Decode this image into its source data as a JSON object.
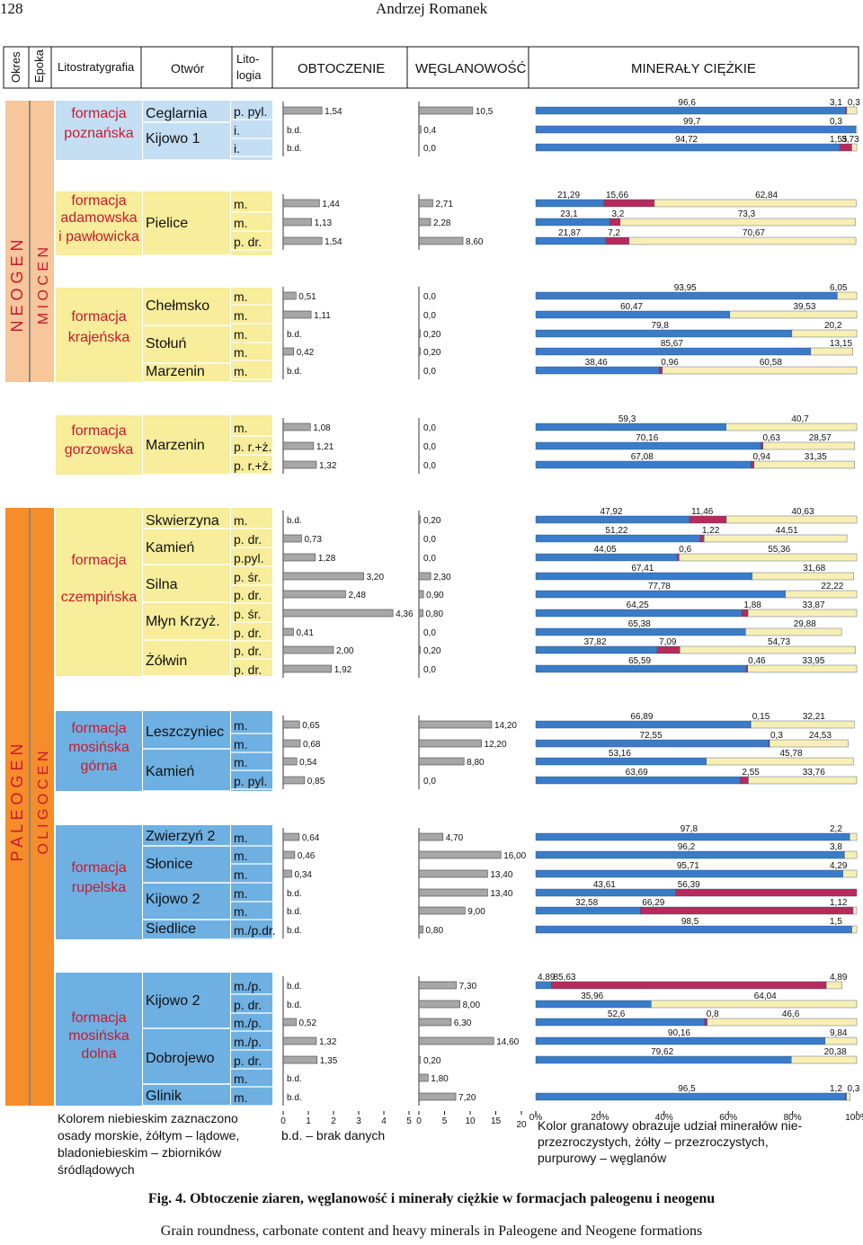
{
  "page_header": {
    "page_number": "128",
    "author": "Andrzej Romanek"
  },
  "column_headers": {
    "okres": "Okres",
    "epoka": "Epoka",
    "lito": "Litostratygrafia",
    "otwor": "Otwór",
    "litologia": "Litologia",
    "obtoczenie": "OBTOCZENIE",
    "weglanowosc": "WĘGLANOWOŚĆ",
    "mineraly": "MINERAŁY CIĘŻKIE"
  },
  "periods": [
    {
      "label": "N E O G E N",
      "epoch": "M I O C E N",
      "color": "#f7c69a"
    },
    {
      "label": "P A L E O G E N",
      "epoch": "O L I G O C E N",
      "color": "#f58d2a"
    }
  ],
  "formations": [
    {
      "name": [
        "formacja",
        "poznańska"
      ],
      "env": "lake"
    },
    {
      "name": [
        "formacja",
        "adamowska",
        "i pawłowicka"
      ],
      "env": "land"
    },
    {
      "name": [
        "formacja",
        "krajeńska"
      ],
      "env": "land"
    },
    {
      "name": [
        "formacja",
        "gorzowska"
      ],
      "env": "land"
    },
    {
      "name": [
        "formacja",
        "czempińska"
      ],
      "env": "land"
    },
    {
      "name": [
        "formacja",
        "mosińska",
        "górna"
      ],
      "env": "sea"
    },
    {
      "name": [
        "formacja",
        "rupelska"
      ],
      "env": "sea"
    },
    {
      "name": [
        "formacja",
        "mosińska",
        "dolna"
      ],
      "env": "sea"
    }
  ],
  "env_colors": {
    "sea": "#6eb0e2",
    "land": "#f7ed9a",
    "lake": "#c4def3"
  },
  "boreholes": [
    "Ceglarnia",
    "Kijowo 1",
    "Pielice",
    "Chełmsko",
    "Stołuń",
    "Marzenin",
    "Marzenin",
    "Skwierzyna",
    "Kamień",
    "Silna",
    "Młyn Krzyż.",
    "Żółwin",
    "Leszczyniec",
    "Kamień",
    "Zwierzyń 2",
    "Słonice",
    "Kijowo 2",
    "Siedlice",
    "Kijowo 2",
    "Dobrojewo",
    "Glinik"
  ],
  "samples": [
    {
      "lith": "p. pyl.",
      "round": 1.54,
      "round_label": "1,54",
      "carb": 10.5,
      "carb_label": "10,5",
      "blue": 96.6,
      "red": 0.3,
      "yellow": 3.1,
      "blue_label": "96,6",
      "red_label": "0,3",
      "yellow_label": "3,1"
    },
    {
      "lith": "i.",
      "round": null,
      "round_label": "b.d.",
      "carb": 0.4,
      "carb_label": "0,4",
      "blue": 99.7,
      "red": 0.0,
      "yellow": 0.3,
      "blue_label": "99,7",
      "red_label": "",
      "yellow_label": "0,3"
    },
    {
      "lith": "i.",
      "round": null,
      "round_label": "b.d.",
      "carb": 0.0,
      "carb_label": "0,0",
      "blue": 94.72,
      "red": 3.73,
      "yellow": 1.55,
      "blue_label": "94,72",
      "red_label": "3,73",
      "yellow_label": "1,55"
    },
    {
      "lith": "m.",
      "round": 1.44,
      "round_label": "1,44",
      "carb": 2.71,
      "carb_label": "2,71",
      "blue": 21.29,
      "red": 15.66,
      "yellow": 62.84,
      "blue_label": "21,29",
      "red_label": "15,66",
      "yellow_label": "62,84"
    },
    {
      "lith": "m.",
      "round": 1.13,
      "round_label": "1,13",
      "carb": 2.28,
      "carb_label": "2,28",
      "blue": 23.1,
      "red": 3.2,
      "yellow": 73.3,
      "blue_label": "23,1",
      "red_label": "3,2",
      "yellow_label": "73,3"
    },
    {
      "lith": "p. dr.",
      "round": 1.54,
      "round_label": "1,54",
      "carb": 8.6,
      "carb_label": "8,60",
      "blue": 21.87,
      "red": 7.2,
      "yellow": 70.67,
      "blue_label": "21,87",
      "red_label": "7,2",
      "yellow_label": "70,67"
    },
    {
      "lith": "m.",
      "round": 0.51,
      "round_label": "0,51",
      "carb": 0.0,
      "carb_label": "0,0",
      "blue": 93.95,
      "red": 0.0,
      "yellow": 6.05,
      "blue_label": "93,95",
      "red_label": "",
      "yellow_label": "6,05"
    },
    {
      "lith": "m.",
      "round": 1.11,
      "round_label": "1,11",
      "carb": 0.0,
      "carb_label": "0,0",
      "blue": 60.47,
      "red": 0.0,
      "yellow": 39.53,
      "blue_label": "60,47",
      "red_label": "",
      "yellow_label": "39,53"
    },
    {
      "lith": "m.",
      "round": null,
      "round_label": "b.d.",
      "carb": 0.2,
      "carb_label": "0,20",
      "blue": 79.8,
      "red": 0.0,
      "yellow": 20.2,
      "blue_label": "79,8",
      "red_label": "",
      "yellow_label": "20,2"
    },
    {
      "lith": "m.",
      "round": 0.42,
      "round_label": "0,42",
      "carb": 0.2,
      "carb_label": "0,20",
      "blue": 85.67,
      "red": 0.0,
      "yellow": 13.15,
      "blue_label": "85,67",
      "red_label": "",
      "yellow_label": "13,15"
    },
    {
      "lith": "m.",
      "round": null,
      "round_label": "b.d.",
      "carb": 0.0,
      "carb_label": "0,0",
      "blue": 38.46,
      "red": 0.96,
      "yellow": 60.58,
      "blue_label": "38,46",
      "red_label": "0,96",
      "yellow_label": "60,58"
    },
    {
      "lith": "m.",
      "round": 1.08,
      "round_label": "1,08",
      "carb": 0.0,
      "carb_label": "0,0",
      "blue": 59.3,
      "red": 0.0,
      "yellow": 40.7,
      "blue_label": "59,3",
      "red_label": "",
      "yellow_label": "40,7"
    },
    {
      "lith": "p. r.+ż.",
      "round": 1.21,
      "round_label": "1,21",
      "carb": 0.0,
      "carb_label": "0,0",
      "blue": 70.16,
      "red": 0.63,
      "yellow": 28.57,
      "blue_label": "70,16",
      "red_label": "0,63",
      "yellow_label": "28,57"
    },
    {
      "lith": "p. r.+ż.",
      "round": 1.32,
      "round_label": "1,32",
      "carb": 0.0,
      "carb_label": "0,0",
      "blue": 67.08,
      "red": 0.94,
      "yellow": 31.35,
      "blue_label": "67,08",
      "red_label": "0,94",
      "yellow_label": "31,35"
    },
    {
      "lith": "m.",
      "round": null,
      "round_label": "b.d.",
      "carb": 0.2,
      "carb_label": "0,20",
      "blue": 47.92,
      "red": 11.46,
      "yellow": 40.63,
      "blue_label": "47,92",
      "red_label": "11,46",
      "yellow_label": "40,63"
    },
    {
      "lith": "p. dr.",
      "round": 0.73,
      "round_label": "0,73",
      "carb": 0.0,
      "carb_label": "0,0",
      "blue": 51.22,
      "red": 1.22,
      "yellow": 44.51,
      "blue_label": "51,22",
      "red_label": "1,22",
      "yellow_label": "44,51"
    },
    {
      "lith": "p.pyl.",
      "round": 1.28,
      "round_label": "1,28",
      "carb": 0.0,
      "carb_label": "0,0",
      "blue": 44.05,
      "red": 0.6,
      "yellow": 55.36,
      "blue_label": "44,05",
      "red_label": "0,6",
      "yellow_label": "55,36"
    },
    {
      "lith": "p. śr.",
      "round": 3.2,
      "round_label": "3,20",
      "carb": 2.3,
      "carb_label": "2,30",
      "blue": 67.41,
      "red": 0.0,
      "yellow": 31.68,
      "blue_label": "67,41",
      "red_label": "",
      "yellow_label": "31,68"
    },
    {
      "lith": "p. dr.",
      "round": 2.48,
      "round_label": "2,48",
      "carb": 0.9,
      "carb_label": "0,90",
      "blue": 77.78,
      "red": 0.0,
      "yellow": 22.22,
      "blue_label": "77,78",
      "red_label": "",
      "yellow_label": "22,22"
    },
    {
      "lith": "p. śr.",
      "round": 4.36,
      "round_label": "4,36",
      "carb": 0.8,
      "carb_label": "0,80",
      "blue": 64.25,
      "red": 1.88,
      "yellow": 33.87,
      "blue_label": "64,25",
      "red_label": "1,88",
      "yellow_label": "33,87"
    },
    {
      "lith": "p. dr.",
      "round": 0.41,
      "round_label": "0,41",
      "carb": 0.0,
      "carb_label": "0,0",
      "blue": 65.38,
      "red": 0.0,
      "yellow": 29.88,
      "blue_label": "65,38",
      "red_label": "",
      "yellow_label": "29,88"
    },
    {
      "lith": "p. dr.",
      "round": 2.0,
      "round_label": "2,00",
      "carb": 0.2,
      "carb_label": "0,20",
      "blue": 37.82,
      "red": 7.09,
      "yellow": 54.73,
      "blue_label": "37,82",
      "red_label": "7,09",
      "yellow_label": "54,73"
    },
    {
      "lith": "p. dr.",
      "round": 1.92,
      "round_label": "1,92",
      "carb": 0.0,
      "carb_label": "0,0",
      "blue": 65.59,
      "red": 0.46,
      "yellow": 33.95,
      "blue_label": "65,59",
      "red_label": "0,46",
      "yellow_label": "33,95"
    },
    {
      "lith": "m.",
      "round": 0.65,
      "round_label": "0,65",
      "carb": 14.2,
      "carb_label": "14,20",
      "blue": 66.89,
      "red": 0.15,
      "yellow": 32.21,
      "blue_label": "66,89",
      "red_label": "0,15",
      "yellow_label": "32,21"
    },
    {
      "lith": "m.",
      "round": 0.68,
      "round_label": "0,68",
      "carb": 12.2,
      "carb_label": "12,20",
      "blue": 72.55,
      "red": 0.3,
      "yellow": 24.53,
      "blue_label": "72,55",
      "red_label": "0,3",
      "yellow_label": "24,53"
    },
    {
      "lith": "m.",
      "round": 0.54,
      "round_label": "0,54",
      "carb": 8.8,
      "carb_label": "8,80",
      "blue": 53.16,
      "red": 0.0,
      "yellow": 45.78,
      "blue_label": "53,16",
      "red_label": "",
      "yellow_label": "45,78"
    },
    {
      "lith": "p. pyl.",
      "round": 0.85,
      "round_label": "0,85",
      "carb": 0.0,
      "carb_label": "0,0",
      "blue": 63.69,
      "red": 2.55,
      "yellow": 33.76,
      "blue_label": "63,69",
      "red_label": "2,55",
      "yellow_label": "33,76"
    },
    {
      "lith": "m.",
      "round": 0.64,
      "round_label": "0,64",
      "carb": 4.7,
      "carb_label": "4,70",
      "blue": 97.8,
      "red": 0.0,
      "yellow": 2.2,
      "blue_label": "97,8",
      "red_label": "",
      "yellow_label": "2,2"
    },
    {
      "lith": "m.",
      "round": 0.46,
      "round_label": "0,46",
      "carb": 16.0,
      "carb_label": "16,00",
      "blue": 96.2,
      "red": 0.0,
      "yellow": 3.8,
      "blue_label": "96,2",
      "red_label": "",
      "yellow_label": "3,8"
    },
    {
      "lith": "m.",
      "round": 0.34,
      "round_label": "0,34",
      "carb": 13.4,
      "carb_label": "13,40",
      "blue": 95.71,
      "red": 0.0,
      "yellow": 4.29,
      "blue_label": "95,71",
      "red_label": "",
      "yellow_label": "4,29"
    },
    {
      "lith": "m.",
      "round": null,
      "round_label": "b.d.",
      "carb": 13.4,
      "carb_label": "13,40",
      "blue": 43.61,
      "red": 56.39,
      "yellow": 0.0,
      "blue_label": "43,61",
      "red_label": "56,39",
      "yellow_label": ""
    },
    {
      "lith": "m.",
      "round": null,
      "round_label": "b.d.",
      "carb": 9.0,
      "carb_label": "9,00",
      "blue": 32.58,
      "red": 66.29,
      "yellow": 1.12,
      "blue_label": "32,58",
      "red_label": "66,29",
      "yellow_label": "1,12"
    },
    {
      "lith": "m./p.dr.",
      "round": null,
      "round_label": "b.d.",
      "carb": 0.8,
      "carb_label": "0,80",
      "blue": 98.5,
      "red": 0.0,
      "yellow": 1.5,
      "blue_label": "98,5",
      "red_label": "",
      "yellow_label": "1,5"
    },
    {
      "lith": "m./p.",
      "round": null,
      "round_label": "b.d.",
      "carb": 7.3,
      "carb_label": "7,30",
      "blue": 4.89,
      "red": 85.63,
      "yellow": 4.89,
      "blue_label": "4,89",
      "red_label": "85,63",
      "yellow_label": "4,89"
    },
    {
      "lith": "p. dr.",
      "round": null,
      "round_label": "b.d.",
      "carb": 8.0,
      "carb_label": "8,00",
      "blue": 35.96,
      "red": 0.0,
      "yellow": 64.04,
      "blue_label": "35,96",
      "red_label": "",
      "yellow_label": "64,04"
    },
    {
      "lith": "m./p.",
      "round": 0.52,
      "round_label": "0,52",
      "carb": 6.3,
      "carb_label": "6,30",
      "blue": 52.6,
      "red": 0.8,
      "yellow": 46.6,
      "blue_label": "52,6",
      "red_label": "0,8",
      "yellow_label": "46,6"
    },
    {
      "lith": "m./p.",
      "round": 1.32,
      "round_label": "1,32",
      "carb": 14.6,
      "carb_label": "14,60",
      "blue": 90.16,
      "red": 0.0,
      "yellow": 9.84,
      "blue_label": "90,16",
      "red_label": "",
      "yellow_label": "9,84"
    },
    {
      "lith": "p. dr.",
      "round": 1.35,
      "round_label": "1,35",
      "carb": 0.2,
      "carb_label": "0,20",
      "blue": 79.62,
      "red": 0.0,
      "yellow": 20.38,
      "blue_label": "79,62",
      "red_label": "",
      "yellow_label": "20,38"
    },
    {
      "lith": "m.",
      "round": null,
      "round_label": "b.d.",
      "carb": 1.8,
      "carb_label": "1,80",
      "blue": 0.0,
      "red": 0.0,
      "yellow": 0.0,
      "blue_label": "",
      "red_label": "",
      "yellow_label": ""
    },
    {
      "lith": "m.",
      "round": null,
      "round_label": "b.d.",
      "carb": 7.2,
      "carb_label": "7,20",
      "blue": 96.5,
      "red": 0.3,
      "yellow": 1.2,
      "blue_label": "96,5",
      "red_label": "0,3",
      "yellow_label": "1,2"
    }
  ],
  "axes": {
    "round_ticks": [
      "0",
      "1",
      "2",
      "3",
      "4",
      "5"
    ],
    "carb_ticks": [
      "0",
      "5",
      "10",
      "15",
      "20"
    ],
    "heavy_ticks": [
      "0%",
      "20%",
      "40%",
      "60%",
      "80%",
      "100%"
    ]
  },
  "legend": {
    "left": [
      "Kolorem niebieskim zaznaczono",
      "osady morskie, żółtym – lądowe,",
      "bladoniebieskim – zbiorników",
      "śródlądowych"
    ],
    "nodata": "b.d. – brak danych",
    "right": [
      "Kolor granatowy obrazuje udział minerałów nie-",
      "przezroczystych, żółty – przezroczystych,",
      "purpurowy – węglanów"
    ]
  },
  "colors": {
    "blue": "#3a7cc7",
    "red": "#b82a5a",
    "yellow": "#f8efb4",
    "grey": "#a7a7a7"
  },
  "caption": {
    "pl": "Fig. 4. Obtoczenie ziaren, węglanowość i minerały ciężkie w formacjach paleogenu i neogenu",
    "en": "Grain roundness, carbonate content and heavy minerals in Paleogene and Neogene formations"
  },
  "chart_data": [
    {
      "type": "bar",
      "title": "OBTOCZENIE",
      "xlim": [
        0,
        5
      ],
      "values": [
        1.54,
        null,
        null,
        1.44,
        1.13,
        1.54,
        0.51,
        1.11,
        null,
        0.42,
        null,
        1.08,
        1.21,
        1.32,
        null,
        0.73,
        1.28,
        3.2,
        2.48,
        4.36,
        0.41,
        2.0,
        1.92,
        0.65,
        0.68,
        0.54,
        0.85,
        0.64,
        0.46,
        0.34,
        null,
        null,
        null,
        null,
        null,
        0.52,
        1.32,
        1.35,
        null,
        null
      ]
    },
    {
      "type": "bar",
      "title": "WĘGLANOWOŚĆ",
      "xlim": [
        0,
        20
      ],
      "values": [
        10.5,
        0.4,
        0.0,
        2.71,
        2.28,
        8.6,
        0.0,
        0.0,
        0.2,
        0.2,
        0.0,
        0.0,
        0.0,
        0.0,
        0.2,
        0.0,
        0.0,
        2.3,
        0.9,
        0.8,
        0.0,
        0.2,
        0.0,
        14.2,
        12.2,
        8.8,
        0.0,
        4.7,
        16.0,
        13.4,
        13.4,
        9.0,
        0.8,
        7.3,
        8.0,
        6.3,
        14.6,
        0.2,
        1.8,
        7.2
      ]
    },
    {
      "type": "bar",
      "title": "MINERAŁY CIĘŻKIE",
      "stacked": true,
      "xlim": [
        0,
        100
      ],
      "series": [
        {
          "values": [
            96.6,
            99.7,
            94.72,
            21.29,
            23.1,
            21.87,
            93.95,
            60.47,
            79.8,
            85.67,
            38.46,
            59.3,
            70.16,
            67.08,
            47.92,
            51.22,
            44.05,
            67.41,
            77.78,
            64.25,
            65.38,
            37.82,
            65.59,
            66.89,
            72.55,
            53.16,
            63.69,
            97.8,
            96.2,
            95.71,
            43.61,
            32.58,
            98.5,
            4.89,
            35.96,
            52.6,
            90.16,
            79.62,
            0,
            96.5
          ]
        },
        {
          "values": [
            0.3,
            0,
            3.73,
            15.66,
            3.2,
            7.2,
            0,
            0,
            0,
            0,
            0.96,
            0,
            0.63,
            0.94,
            11.46,
            1.22,
            0.6,
            0,
            0,
            1.88,
            0,
            7.09,
            0.46,
            0.15,
            0.3,
            0,
            2.55,
            0,
            0,
            0,
            56.39,
            66.29,
            0,
            85.63,
            0,
            0.8,
            0,
            0,
            0,
            0.3
          ]
        },
        {
          "values": [
            3.1,
            0.3,
            1.55,
            62.84,
            73.3,
            70.67,
            6.05,
            39.53,
            20.2,
            13.15,
            60.58,
            40.7,
            28.57,
            31.35,
            40.63,
            44.51,
            55.36,
            31.68,
            22.22,
            33.87,
            29.88,
            54.73,
            33.95,
            32.21,
            24.53,
            45.78,
            33.76,
            2.2,
            3.8,
            4.29,
            0,
            1.12,
            1.5,
            4.89,
            64.04,
            46.6,
            9.84,
            20.38,
            0,
            1.2
          ]
        }
      ]
    }
  ]
}
